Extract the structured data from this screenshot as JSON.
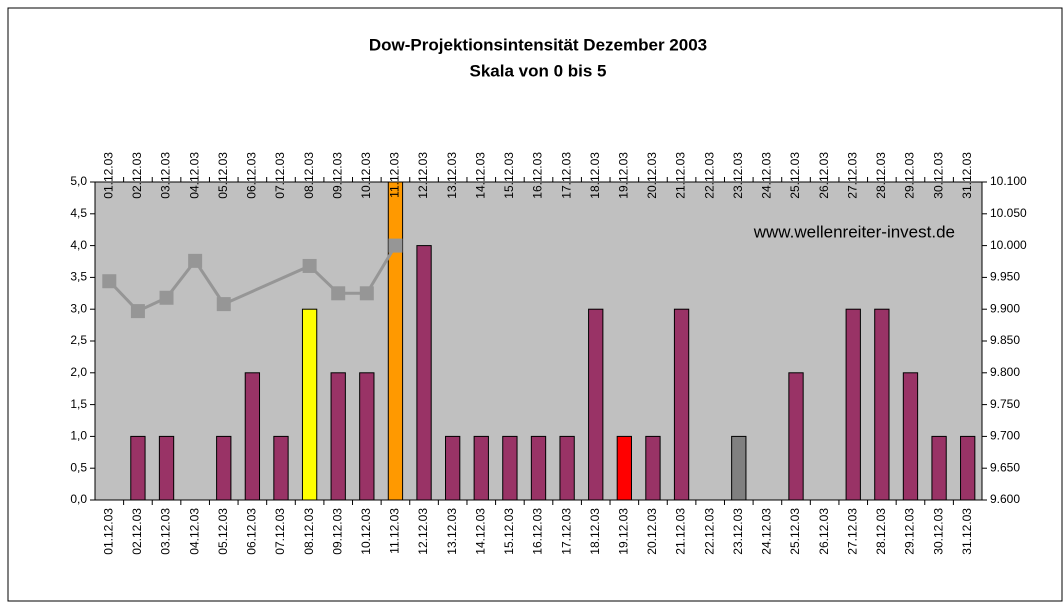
{
  "chart_data": {
    "type": "bar",
    "title": "Dow-Projektionsintensität Dezember 2003",
    "subtitle": "Skala von 0 bis 5",
    "annotation": "www.wellenreiter-invest.de",
    "categories": [
      "01.12.03",
      "02.12.03",
      "03.12.03",
      "04.12.03",
      "05.12.03",
      "06.12.03",
      "07.12.03",
      "08.12.03",
      "09.12.03",
      "10.12.03",
      "11.12.03",
      "12.12.03",
      "13.12.03",
      "14.12.03",
      "15.12.03",
      "16.12.03",
      "17.12.03",
      "18.12.03",
      "19.12.03",
      "20.12.03",
      "21.12.03",
      "22.12.03",
      "23.12.03",
      "24.12.03",
      "25.12.03",
      "26.12.03",
      "27.12.03",
      "28.12.03",
      "29.12.03",
      "30.12.03",
      "31.12.03"
    ],
    "series": [
      {
        "type": "bar",
        "values": [
          0,
          1,
          1,
          0,
          1,
          2,
          1,
          3,
          2,
          2,
          5,
          4,
          1,
          1,
          1,
          1,
          1,
          3,
          1,
          1,
          3,
          0,
          1,
          0,
          2,
          0,
          3,
          3,
          2,
          1,
          1
        ],
        "colors": [
          "#993366",
          "#993366",
          "#993366",
          "#993366",
          "#993366",
          "#993366",
          "#993366",
          "#ffff00",
          "#993366",
          "#993366",
          "#ff9900",
          "#993366",
          "#993366",
          "#993366",
          "#993366",
          "#993366",
          "#993366",
          "#993366",
          "#ff0000",
          "#993366",
          "#993366",
          "#993366",
          "#808080",
          "#993366",
          "#993366",
          "#993366",
          "#993366",
          "#993366",
          "#993366",
          "#993366",
          "#993366"
        ]
      },
      {
        "type": "line",
        "axis": "y2",
        "color": "#969696",
        "values": [
          9944,
          9897,
          9918,
          9976,
          9908,
          null,
          null,
          9968,
          9925,
          9925,
          10000,
          null,
          null,
          null,
          null,
          null,
          null,
          null,
          null,
          null,
          null,
          null,
          null,
          null,
          null,
          null,
          null,
          null,
          null,
          null,
          null
        ]
      }
    ],
    "connect_gaps": true,
    "ylim": [
      0,
      5
    ],
    "yticks": [
      {
        "value": 0,
        "label": "0,0"
      },
      {
        "value": 0.5,
        "label": "0,5"
      },
      {
        "value": 1,
        "label": "1,0"
      },
      {
        "value": 1.5,
        "label": "1,5"
      },
      {
        "value": 2,
        "label": "2,0"
      },
      {
        "value": 2.5,
        "label": "2,5"
      },
      {
        "value": 3,
        "label": "3,0"
      },
      {
        "value": 3.5,
        "label": "3,5"
      },
      {
        "value": 4,
        "label": "4,0"
      },
      {
        "value": 4.5,
        "label": "4,5"
      },
      {
        "value": 5,
        "label": "5,0"
      }
    ],
    "y2lim": [
      9600,
      10100
    ],
    "y2ticks": [
      {
        "value": 9600,
        "label": "9.600"
      },
      {
        "value": 9650,
        "label": "9.650"
      },
      {
        "value": 9700,
        "label": "9.700"
      },
      {
        "value": 9750,
        "label": "9.750"
      },
      {
        "value": 9800,
        "label": "9.800"
      },
      {
        "value": 9850,
        "label": "9.850"
      },
      {
        "value": 9900,
        "label": "9.900"
      },
      {
        "value": 9950,
        "label": "9.950"
      },
      {
        "value": 10000,
        "label": "10.000"
      },
      {
        "value": 10050,
        "label": "10.050"
      },
      {
        "value": 10100,
        "label": "10.100"
      }
    ],
    "plot_background": "#c0c0c0"
  }
}
